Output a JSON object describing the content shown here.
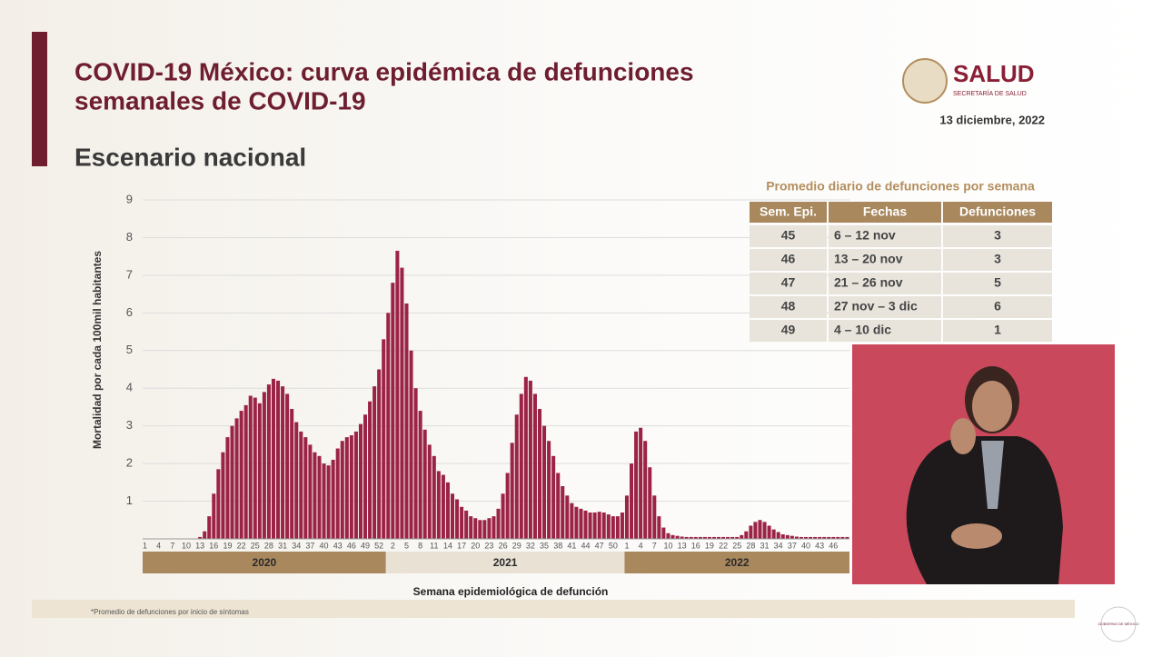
{
  "header": {
    "title_lines": [
      "COVID-19 México: curva epidémica de defunciones",
      "semanales de COVID-19"
    ],
    "subtitle": "Escenario nacional",
    "logo": "SALUD",
    "logo_sub": "SECRETARÍA DE SALUD",
    "date": "13 diciembre, 2022"
  },
  "chart_data": {
    "type": "bar",
    "y_label": "Mortalidad por cada 100mil habitantes",
    "x_label": "Semana epidemiológica de defunción",
    "color": "#9b2345",
    "ylim": [
      0,
      9
    ],
    "yticks": [
      1,
      2,
      3,
      4,
      5,
      6,
      7,
      8,
      9
    ],
    "grid": true,
    "groups": [
      {
        "name": "2020",
        "categories": [
          "1",
          null,
          null,
          "4",
          null,
          null,
          "7",
          null,
          null,
          "10",
          null,
          null,
          "13",
          null,
          null,
          "16",
          null,
          null,
          "19",
          null,
          null,
          "22",
          null,
          null,
          "25",
          null,
          null,
          "28",
          null,
          null,
          "31",
          null,
          null,
          "34",
          null,
          null,
          "37",
          null,
          null,
          "40",
          null,
          null,
          "43",
          null,
          null,
          "46",
          null,
          null,
          "49",
          null,
          null,
          "52",
          null
        ],
        "values": [
          0,
          0,
          0,
          0,
          0,
          0,
          0,
          0,
          0,
          0,
          0,
          0,
          0.05,
          0.2,
          0.6,
          1.2,
          1.85,
          2.3,
          2.7,
          3.0,
          3.2,
          3.4,
          3.55,
          3.8,
          3.75,
          3.6,
          3.9,
          4.1,
          4.25,
          4.2,
          4.05,
          3.85,
          3.45,
          3.1,
          2.85,
          2.7,
          2.5,
          2.3,
          2.2,
          2.0,
          1.95,
          2.1,
          2.4,
          2.6,
          2.7,
          2.75,
          2.85,
          3.05,
          3.3,
          3.65,
          4.05,
          4.5,
          5.3
        ]
      },
      {
        "name": "2021",
        "categories": [
          null,
          "2",
          null,
          null,
          "5",
          null,
          null,
          "8",
          null,
          null,
          "11",
          null,
          null,
          "14",
          null,
          null,
          "17",
          null,
          null,
          "20",
          null,
          null,
          "23",
          null,
          null,
          "26",
          null,
          null,
          "29",
          null,
          null,
          "32",
          null,
          null,
          "35",
          null,
          null,
          "38",
          null,
          null,
          "41",
          null,
          null,
          "44",
          null,
          null,
          "47",
          null,
          null,
          "50",
          null,
          null
        ],
        "values": [
          6.0,
          6.8,
          7.65,
          7.2,
          6.25,
          5.0,
          4.0,
          3.4,
          2.9,
          2.5,
          2.2,
          1.8,
          1.7,
          1.5,
          1.2,
          1.05,
          0.85,
          0.75,
          0.6,
          0.55,
          0.5,
          0.5,
          0.55,
          0.6,
          0.8,
          1.2,
          1.75,
          2.55,
          3.3,
          3.85,
          4.3,
          4.2,
          3.85,
          3.45,
          3.0,
          2.6,
          2.2,
          1.75,
          1.4,
          1.15,
          0.95,
          0.85,
          0.8,
          0.75,
          0.7,
          0.7,
          0.72,
          0.7,
          0.65,
          0.6,
          0.6,
          0.7
        ]
      },
      {
        "name": "2022",
        "categories": [
          "1",
          null,
          null,
          "4",
          null,
          null,
          "7",
          null,
          null,
          "10",
          null,
          null,
          "13",
          null,
          null,
          "16",
          null,
          null,
          "19",
          null,
          null,
          "22",
          null,
          null,
          "25",
          null,
          null,
          "28",
          null,
          null,
          "31",
          null,
          null,
          "34",
          null,
          null,
          "37",
          null,
          null,
          "40",
          null,
          null,
          "43",
          null,
          null,
          "46",
          null,
          null,
          null
        ],
        "values": [
          1.15,
          2.0,
          2.85,
          2.95,
          2.6,
          1.9,
          1.15,
          0.6,
          0.3,
          0.15,
          0.1,
          0.08,
          0.06,
          0.05,
          0.05,
          0.05,
          0.05,
          0.05,
          0.05,
          0.05,
          0.05,
          0.05,
          0.05,
          0.05,
          0.05,
          0.1,
          0.2,
          0.35,
          0.45,
          0.5,
          0.45,
          0.35,
          0.25,
          0.18,
          0.12,
          0.1,
          0.08,
          0.06,
          0.05,
          0.05,
          0.05,
          0.05,
          0.05,
          0.05,
          0.05,
          0.05,
          0.05,
          0.05,
          0.05
        ]
      }
    ]
  },
  "table": {
    "title": "Promedio diario de defunciones por semana",
    "header": [
      "Sem. Epi.",
      "Fechas",
      "Defunciones"
    ],
    "rows": [
      [
        45,
        "6 – 12 nov",
        3
      ],
      [
        46,
        "13 – 20 nov",
        3
      ],
      [
        47,
        "21 – 26 nov",
        5
      ],
      [
        48,
        "27 nov – 3 dic",
        6
      ],
      [
        49,
        "4 – 10 dic",
        1
      ]
    ]
  },
  "footer": {
    "note": "*Promedio de defunciones por inicio de síntomas",
    "logo": "GOBIERNO DE MÉXICO"
  }
}
